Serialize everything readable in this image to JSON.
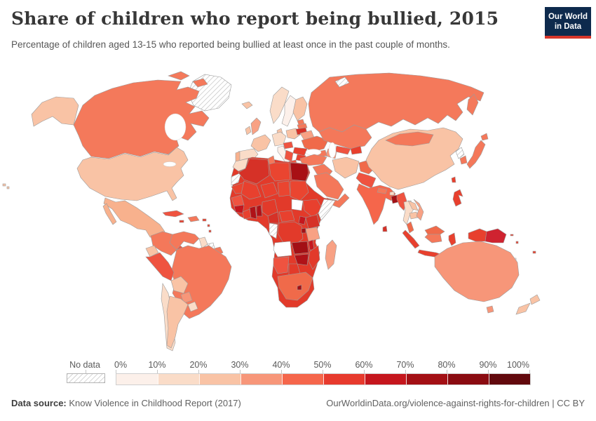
{
  "header": {
    "title": "Share of children who report being bullied, 2015",
    "subtitle": "Percentage of children aged 13-15 who reported being bullied at least once in the past couple of months."
  },
  "logo": {
    "line1": "Our World",
    "line2": "in Data",
    "bg": "#0e2a4d",
    "accent": "#d7362a"
  },
  "legend": {
    "no_data_label": "No data",
    "tick_labels": [
      "0%",
      "10%",
      "20%",
      "30%",
      "40%",
      "50%",
      "60%",
      "70%",
      "80%",
      "90%",
      "100%"
    ],
    "colors": [
      "#fcf0ea",
      "#fadcc8",
      "#f9c3a5",
      "#f79679",
      "#f5664b",
      "#e73a2d",
      "#c5161d",
      "#a31015",
      "#8a0b11",
      "#62090d"
    ]
  },
  "footer": {
    "source_label": "Data source:",
    "source_text": " Know Violence in Childhood Report (2017)",
    "credit": "OurWorldinData.org/violence-against-rights-for-children | CC BY"
  },
  "map": {
    "stroke": "#9c9c9c",
    "region_fills": {
      "greenland": "hatch",
      "iceland": "#f9c3a5",
      "canada": "#f4795b",
      "alaska": "#f9c3a5",
      "usa": "#f9c3a5",
      "mexico": "#f8b18d",
      "guatemala": "#f4664c",
      "honduras-nicaragua": "#ef5340",
      "costa-rica-panama": "#e8402e",
      "cuba": "#ef5340",
      "hispaniola": "#f4785a",
      "jamaica": "#e8402e",
      "puerto-rico": "#e8402e",
      "lesser-antilles": "#e8402e",
      "hawaii": "#f9c3a5",
      "colombia": "#f4785a",
      "venezuela": "#f4785a",
      "guyana": "#fadcc8",
      "suriname": "hatch",
      "french-guiana": "#f4785a",
      "ecuador": "#f9c3a5",
      "peru": "#ef5340",
      "brazil": "#f4785a",
      "bolivia": "#f9c3a5",
      "paraguay": "#f79679",
      "chile": "#fadcc8",
      "argentina": "#f9c3a5",
      "uruguay": "#fadcc8",
      "norway": "#fadcc8",
      "sweden": "#fcf0ea",
      "finland": "#f9c3a5",
      "denmark": "#f9c3a5",
      "uk": "#f8a184",
      "ireland": "#f9c3a5",
      "germany": "#fadcc8",
      "france": "#f9c3a5",
      "spain": "#fadcc8",
      "portugal": "#f8b18d",
      "italy": "#fcf0ea",
      "poland": "#f9c3a5",
      "estonia": "#f4785a",
      "latvia": "#f4785a",
      "lithuania": "#d63127",
      "belarus": "#f8a184",
      "ukraine": "#f06a4a",
      "romania": "#e8402e",
      "balkans": "#ef5340",
      "greece": "#ef5340",
      "bulgaria": "#e8402e",
      "hungary-austria": "#ef5340",
      "russia": "#f4795b",
      "novaya-zemlya": "hatch",
      "kazakhstan": "#f4785a",
      "uzbekistan": "#ef5340",
      "turkmenistan": "#f79679",
      "kyrgyzstan-tajikistan": "#e8402e",
      "caucasus": "#f4785a",
      "turkey": "#f4795b",
      "syria-iraq": "#f4785a",
      "iran": "#f9c3a5",
      "saudi-arabia": "#f4785a",
      "yemen-oman": "#f4785a",
      "afghanistan": "#f06a4a",
      "pakistan": "#ef5340",
      "india": "#f5664b",
      "nepal": "#f4785a",
      "bhutan": "#fadcc8",
      "bangladesh": "#a31015",
      "sri-lanka": "#d63127",
      "myanmar": "#ef5340",
      "china": "#f9c3a5",
      "mongolia": "#f4785a",
      "north-korea": "hatch",
      "south-korea": "#f4785a",
      "japan": "#f4785a",
      "taiwan": "#e8402e",
      "thailand": "#fadcc8",
      "laos": "#f9c3a5",
      "cambodia": "#f9c3a5",
      "vietnam": "#f8a184",
      "malaysia": "#f06a4a",
      "philippines": "#e8402e",
      "indonesia": "#e8402e",
      "kalimantan": "#f4785a",
      "west-papua": "#e8402e",
      "papua-new-guinea": "#cf2330",
      "pacific-islands": "#e8402e",
      "pacific-nodata": "hatch",
      "australia": "#f79679",
      "new-zealand": "#f9c3a5",
      "africa-base": "#e23a2a",
      "morocco": "#fadcc8",
      "western-sahara": "hatch",
      "mauritania": "#ea4530",
      "algeria": "#d63127",
      "tunisia": "#f4785a",
      "libya": "#ea4530",
      "egypt": "#a81015",
      "mali": "#e8402e",
      "niger": "#e8402e",
      "chad": "#ea4530",
      "sudan": "#ea4530",
      "senegal": "#ef5340",
      "guinea": "#c5161d",
      "ivory-coast": "#e8402e",
      "ghana": "#b01218",
      "togo-benin": "#b01218",
      "nigeria": "#e23a2a",
      "cameroon": "#d63127",
      "central-african-republic": "#e8402e",
      "south-sudan": "#ffffff",
      "ethiopia": "#e8402e",
      "somalia": "hatch",
      "kenya": "#d63127",
      "uganda": "#c5161d",
      "drc": "#e23a2a",
      "congo-gabon": "hatch",
      "rwanda-burundi": "#a31015",
      "tanzania": "#f8a184",
      "angola": "#ffffff",
      "zambia": "#a31015",
      "malawi": "#c5161d",
      "mozambique": "#e23a2a",
      "zimbabwe": "#b01218",
      "namibia": "#ef5340",
      "botswana": "#e23a2a",
      "south-africa": "#f06a4a",
      "lesotho": "#a31015",
      "madagascar": "#f8a184"
    }
  },
  "chart_data": {
    "type": "choropleth",
    "title": "Share of children who report being bullied, 2015",
    "subtitle": "Percentage of children aged 13-15 who reported being bullied at least once in the past couple of months.",
    "year": 2015,
    "unit": "%",
    "legend_bins": [
      {
        "range": "0-10%",
        "color": "#fcf0ea"
      },
      {
        "range": "10-20%",
        "color": "#fadcc8"
      },
      {
        "range": "20-30%",
        "color": "#f9c3a5"
      },
      {
        "range": "30-40%",
        "color": "#f79679"
      },
      {
        "range": "40-50%",
        "color": "#f5664b"
      },
      {
        "range": "50-60%",
        "color": "#e73a2d"
      },
      {
        "range": "60-70%",
        "color": "#c5161d"
      },
      {
        "range": "70-80%",
        "color": "#a31015"
      },
      {
        "range": "80-90%",
        "color": "#8a0b11"
      },
      {
        "range": "90-100%",
        "color": "#62090d"
      }
    ],
    "no_data": {
      "label": "No data",
      "style": "hatched"
    },
    "regions": [
      {
        "name": "Canada",
        "estimated_share": "30-40%"
      },
      {
        "name": "United States",
        "estimated_share": "20-30%"
      },
      {
        "name": "Mexico",
        "estimated_share": "20-30%"
      },
      {
        "name": "Guatemala",
        "estimated_share": "40-50%"
      },
      {
        "name": "Honduras",
        "estimated_share": "50-60%"
      },
      {
        "name": "Panama",
        "estimated_share": "50-60%"
      },
      {
        "name": "Cuba",
        "estimated_share": "50-60%"
      },
      {
        "name": "Colombia",
        "estimated_share": "30-40%"
      },
      {
        "name": "Venezuela",
        "estimated_share": "30-40%"
      },
      {
        "name": "Guyana",
        "estimated_share": "10-20%"
      },
      {
        "name": "Peru",
        "estimated_share": "50-60%"
      },
      {
        "name": "Ecuador",
        "estimated_share": "20-30%"
      },
      {
        "name": "Brazil",
        "estimated_share": "30-40%"
      },
      {
        "name": "Bolivia",
        "estimated_share": "20-30%"
      },
      {
        "name": "Paraguay",
        "estimated_share": "30-40%"
      },
      {
        "name": "Chile",
        "estimated_share": "10-20%"
      },
      {
        "name": "Argentina",
        "estimated_share": "20-30%"
      },
      {
        "name": "Uruguay",
        "estimated_share": "10-20%"
      },
      {
        "name": "Sweden",
        "estimated_share": "0-10%"
      },
      {
        "name": "Norway",
        "estimated_share": "10-20%"
      },
      {
        "name": "Finland",
        "estimated_share": "20-30%"
      },
      {
        "name": "United Kingdom",
        "estimated_share": "30-40%"
      },
      {
        "name": "Ireland",
        "estimated_share": "20-30%"
      },
      {
        "name": "France",
        "estimated_share": "20-30%"
      },
      {
        "name": "Spain",
        "estimated_share": "10-20%"
      },
      {
        "name": "Portugal",
        "estimated_share": "20-30%"
      },
      {
        "name": "Italy",
        "estimated_share": "0-10%"
      },
      {
        "name": "Germany",
        "estimated_share": "10-20%"
      },
      {
        "name": "Poland",
        "estimated_share": "20-30%"
      },
      {
        "name": "Lithuania",
        "estimated_share": "60-70%"
      },
      {
        "name": "Ukraine",
        "estimated_share": "40-50%"
      },
      {
        "name": "Romania",
        "estimated_share": "50-60%"
      },
      {
        "name": "Greece",
        "estimated_share": "50-60%"
      },
      {
        "name": "Turkey",
        "estimated_share": "30-40%"
      },
      {
        "name": "Russia",
        "estimated_share": "30-40%"
      },
      {
        "name": "Kazakhstan",
        "estimated_share": "30-40%"
      },
      {
        "name": "Iran",
        "estimated_share": "20-30%"
      },
      {
        "name": "Saudi Arabia",
        "estimated_share": "30-40%"
      },
      {
        "name": "Iraq",
        "estimated_share": "30-40%"
      },
      {
        "name": "Afghanistan",
        "estimated_share": "40-50%"
      },
      {
        "name": "Pakistan",
        "estimated_share": "50-60%"
      },
      {
        "name": "India",
        "estimated_share": "40-50%"
      },
      {
        "name": "Bangladesh",
        "estimated_share": "70-80%"
      },
      {
        "name": "Sri Lanka",
        "estimated_share": "60-70%"
      },
      {
        "name": "Myanmar",
        "estimated_share": "50-60%"
      },
      {
        "name": "Thailand",
        "estimated_share": "10-20%"
      },
      {
        "name": "Vietnam",
        "estimated_share": "30-40%"
      },
      {
        "name": "China",
        "estimated_share": "20-30%"
      },
      {
        "name": "Mongolia",
        "estimated_share": "30-40%"
      },
      {
        "name": "South Korea",
        "estimated_share": "30-40%"
      },
      {
        "name": "Japan",
        "estimated_share": "30-40%"
      },
      {
        "name": "Philippines",
        "estimated_share": "50-60%"
      },
      {
        "name": "Malaysia",
        "estimated_share": "40-50%"
      },
      {
        "name": "Indonesia",
        "estimated_share": "50-60%"
      },
      {
        "name": "Papua New Guinea",
        "estimated_share": "60-70%"
      },
      {
        "name": "Australia",
        "estimated_share": "30-40%"
      },
      {
        "name": "New Zealand",
        "estimated_share": "20-30%"
      },
      {
        "name": "Morocco",
        "estimated_share": "10-20%"
      },
      {
        "name": "Algeria",
        "estimated_share": "60-70%"
      },
      {
        "name": "Libya",
        "estimated_share": "50-60%"
      },
      {
        "name": "Egypt",
        "estimated_share": "70-80%"
      },
      {
        "name": "Sudan",
        "estimated_share": "50-60%"
      },
      {
        "name": "Nigeria",
        "estimated_share": "50-60%"
      },
      {
        "name": "Ghana",
        "estimated_share": "70-80%"
      },
      {
        "name": "Ethiopia",
        "estimated_share": "50-60%"
      },
      {
        "name": "Kenya",
        "estimated_share": "60-70%"
      },
      {
        "name": "Tanzania",
        "estimated_share": "30-40%"
      },
      {
        "name": "Democratic Republic of Congo",
        "estimated_share": "50-60%"
      },
      {
        "name": "Zambia",
        "estimated_share": "70-80%"
      },
      {
        "name": "Zimbabwe",
        "estimated_share": "70-80%"
      },
      {
        "name": "Botswana",
        "estimated_share": "50-60%"
      },
      {
        "name": "Namibia",
        "estimated_share": "50-60%"
      },
      {
        "name": "South Africa",
        "estimated_share": "40-50%"
      },
      {
        "name": "Madagascar",
        "estimated_share": "30-40%"
      },
      {
        "name": "Greenland",
        "estimated_share": "No data"
      },
      {
        "name": "North Korea",
        "estimated_share": "No data"
      },
      {
        "name": "Somalia",
        "estimated_share": "No data"
      },
      {
        "name": "Angola",
        "estimated_share": "No data"
      },
      {
        "name": "South Sudan",
        "estimated_share": "No data"
      },
      {
        "name": "Congo",
        "estimated_share": "No data"
      },
      {
        "name": "Suriname",
        "estimated_share": "No data"
      },
      {
        "name": "Western Sahara",
        "estimated_share": "No data"
      }
    ]
  }
}
